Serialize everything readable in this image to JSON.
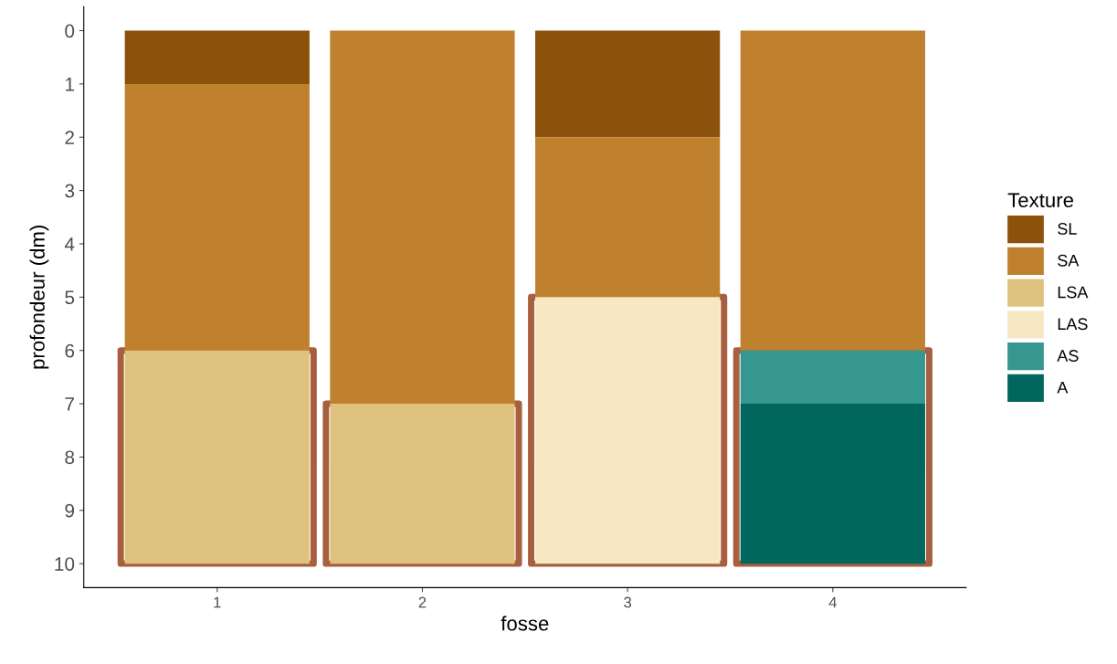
{
  "chart_data": {
    "type": "bar",
    "stacked": true,
    "xlabel": "fosse",
    "ylabel": "profondeur (dm)",
    "legend_title": "Texture",
    "legend": "right",
    "categories": [
      "1",
      "2",
      "3",
      "4"
    ],
    "series": [
      {
        "name": "SL",
        "color": "#8c510a",
        "values": [
          1,
          null,
          2,
          null
        ]
      },
      {
        "name": "SA",
        "color": "#bf812d",
        "values": [
          5,
          7,
          3,
          6
        ]
      },
      {
        "name": "LSA",
        "color": "#dfc27d",
        "values": [
          4,
          3,
          null,
          null
        ]
      },
      {
        "name": "LAS",
        "color": "#f6e8c3",
        "values": [
          null,
          null,
          5,
          null
        ]
      },
      {
        "name": "AS",
        "color": "#35978f",
        "values": [
          null,
          null,
          null,
          1
        ]
      },
      {
        "name": "A",
        "color": "#01665e",
        "values": [
          null,
          null,
          null,
          3
        ]
      }
    ],
    "ylim": [
      10.45,
      -0.45
    ],
    "yticks": [
      0,
      1,
      2,
      3,
      4,
      5,
      6,
      7,
      8,
      9,
      10
    ],
    "grid": false
  }
}
